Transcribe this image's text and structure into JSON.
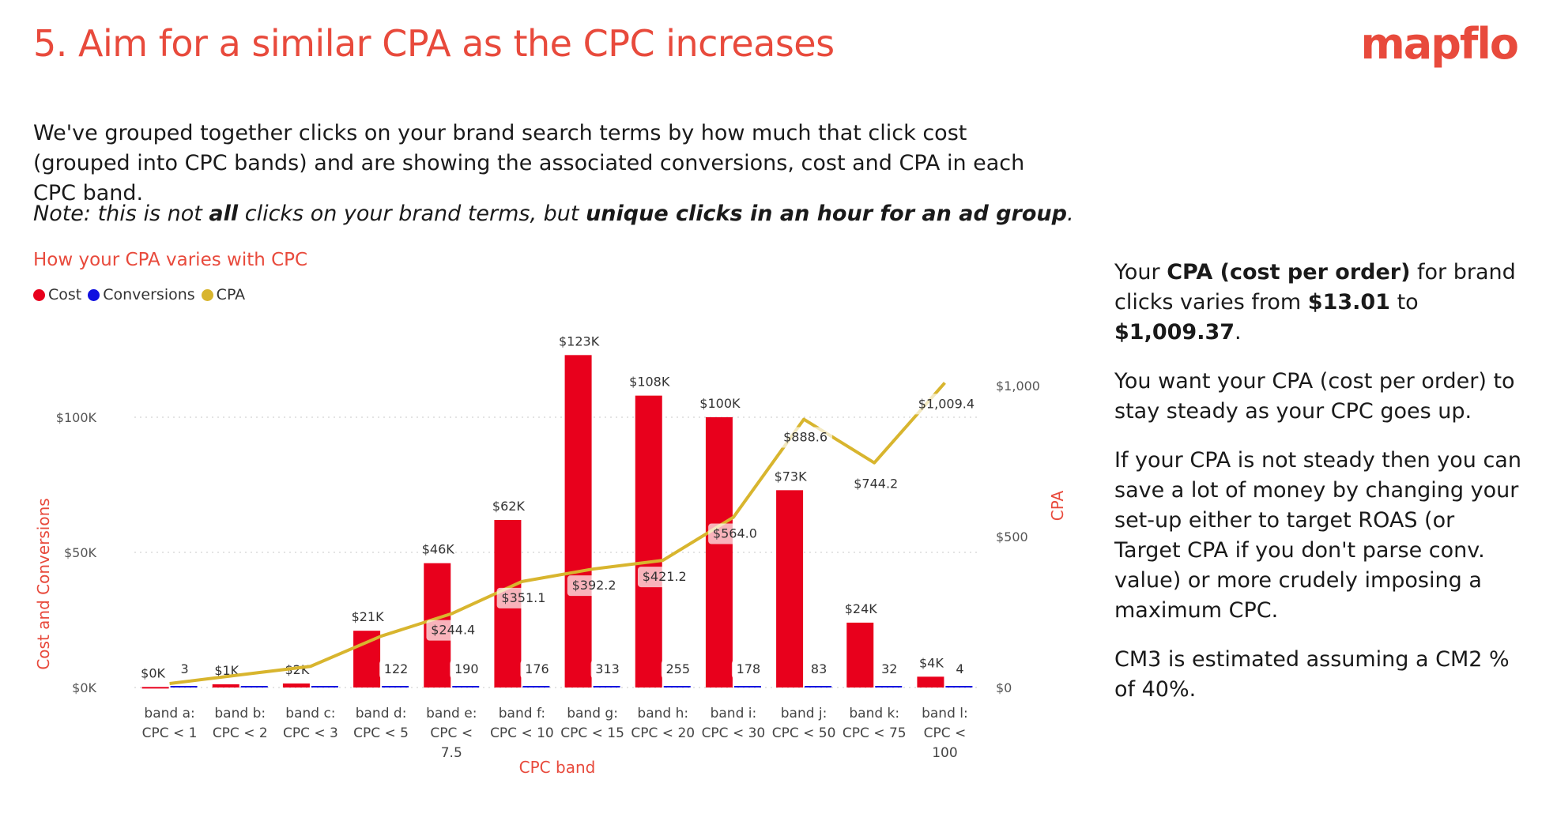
{
  "page": {
    "title": "5. Aim for a similar CPA as the CPC increases",
    "logo": "mapflo",
    "intro": "We've grouped together clicks on your brand search terms by how much that click cost (grouped into CPC bands) and are showing the associated conversions, cost  and CPA in each CPC band.",
    "note": {
      "prefix": "Note: this is not ",
      "bold1": "all",
      "middle": " clicks on your brand terms, but ",
      "bold2": "unique clicks in an hour for an ad group",
      "suffix": "."
    },
    "side": {
      "p1": {
        "a": "Your ",
        "b1": "CPA (cost per order)",
        "c": " for brand clicks varies from ",
        "b2": "$13.01",
        "d": " to ",
        "b3": "$1,009.37",
        "e": "."
      },
      "p2": "You want your CPA (cost per order) to stay steady as your CPC goes up.",
      "p3": "If your CPA is not steady then you can save a lot of money by changing your set-up either to target ROAS (or Target CPA if you don't parse conv. value) or more crudely imposing a maximum CPC.",
      "p4": "CM3 is estimated assuming a CM2 % of 40%."
    }
  },
  "colors": {
    "cost": "#e8001c",
    "conversions": "#1010e0",
    "cpa": "#d8b52e",
    "accent": "#e84a3c"
  },
  "chart_data": {
    "type": "bar",
    "title": "How your CPA varies with CPC",
    "xlabel": "CPC band",
    "ylabel": "Cost and Conversions",
    "y2label": "CPA",
    "legend_position": "top-left",
    "grid": true,
    "ylim": [
      0,
      100000
    ],
    "y2lim": [
      0,
      1000
    ],
    "yticks": [
      "$0K",
      "$50K",
      "$100K"
    ],
    "y2ticks": [
      "$0",
      "$500",
      "$1,000"
    ],
    "categories": [
      [
        "band a:",
        "CPC < 1"
      ],
      [
        "band b:",
        "CPC < 2"
      ],
      [
        "band c:",
        "CPC < 3"
      ],
      [
        "band d:",
        "CPC < 5"
      ],
      [
        "band e:",
        "CPC <",
        "7.5"
      ],
      [
        "band f:",
        "CPC < 10"
      ],
      [
        "band g:",
        "CPC < 15"
      ],
      [
        "band h:",
        "CPC < 20"
      ],
      [
        "band i:",
        "CPC < 30"
      ],
      [
        "band j:",
        "CPC < 50"
      ],
      [
        "band k:",
        "CPC < 75"
      ],
      [
        "band l:",
        "CPC <",
        "100"
      ]
    ],
    "series": [
      {
        "name": "Cost",
        "axis": "left",
        "type": "bar",
        "values": [
          200,
          1200,
          1500,
          21000,
          46000,
          62000,
          123000,
          108000,
          100000,
          73000,
          24000,
          4000
        ],
        "labels": [
          "$0K",
          "$1K",
          "$2K",
          "$21K",
          "$46K",
          "$62K",
          "$123K",
          "$108K",
          "$100K",
          "$73K",
          "$24K",
          "$4K"
        ]
      },
      {
        "name": "Conversions",
        "axis": "left",
        "type": "bar",
        "values": [
          3,
          28,
          30,
          122,
          190,
          176,
          313,
          255,
          178,
          83,
          32,
          4
        ],
        "labels": [
          "3",
          "",
          "",
          "122",
          "190",
          "176",
          "313",
          "255",
          "178",
          "83",
          "32",
          "4"
        ]
      },
      {
        "name": "CPA",
        "axis": "right",
        "type": "line",
        "values": [
          13.01,
          42,
          70,
          170,
          244.4,
          351.1,
          392.2,
          421.2,
          564.0,
          888.6,
          744.2,
          1009.37
        ],
        "labels": [
          "",
          "",
          "",
          "",
          "$244.4",
          "$351.1",
          "$392.2",
          "$421.2",
          "$564.0",
          "$888.6",
          "$744.2",
          "$1,009.4"
        ]
      }
    ]
  }
}
